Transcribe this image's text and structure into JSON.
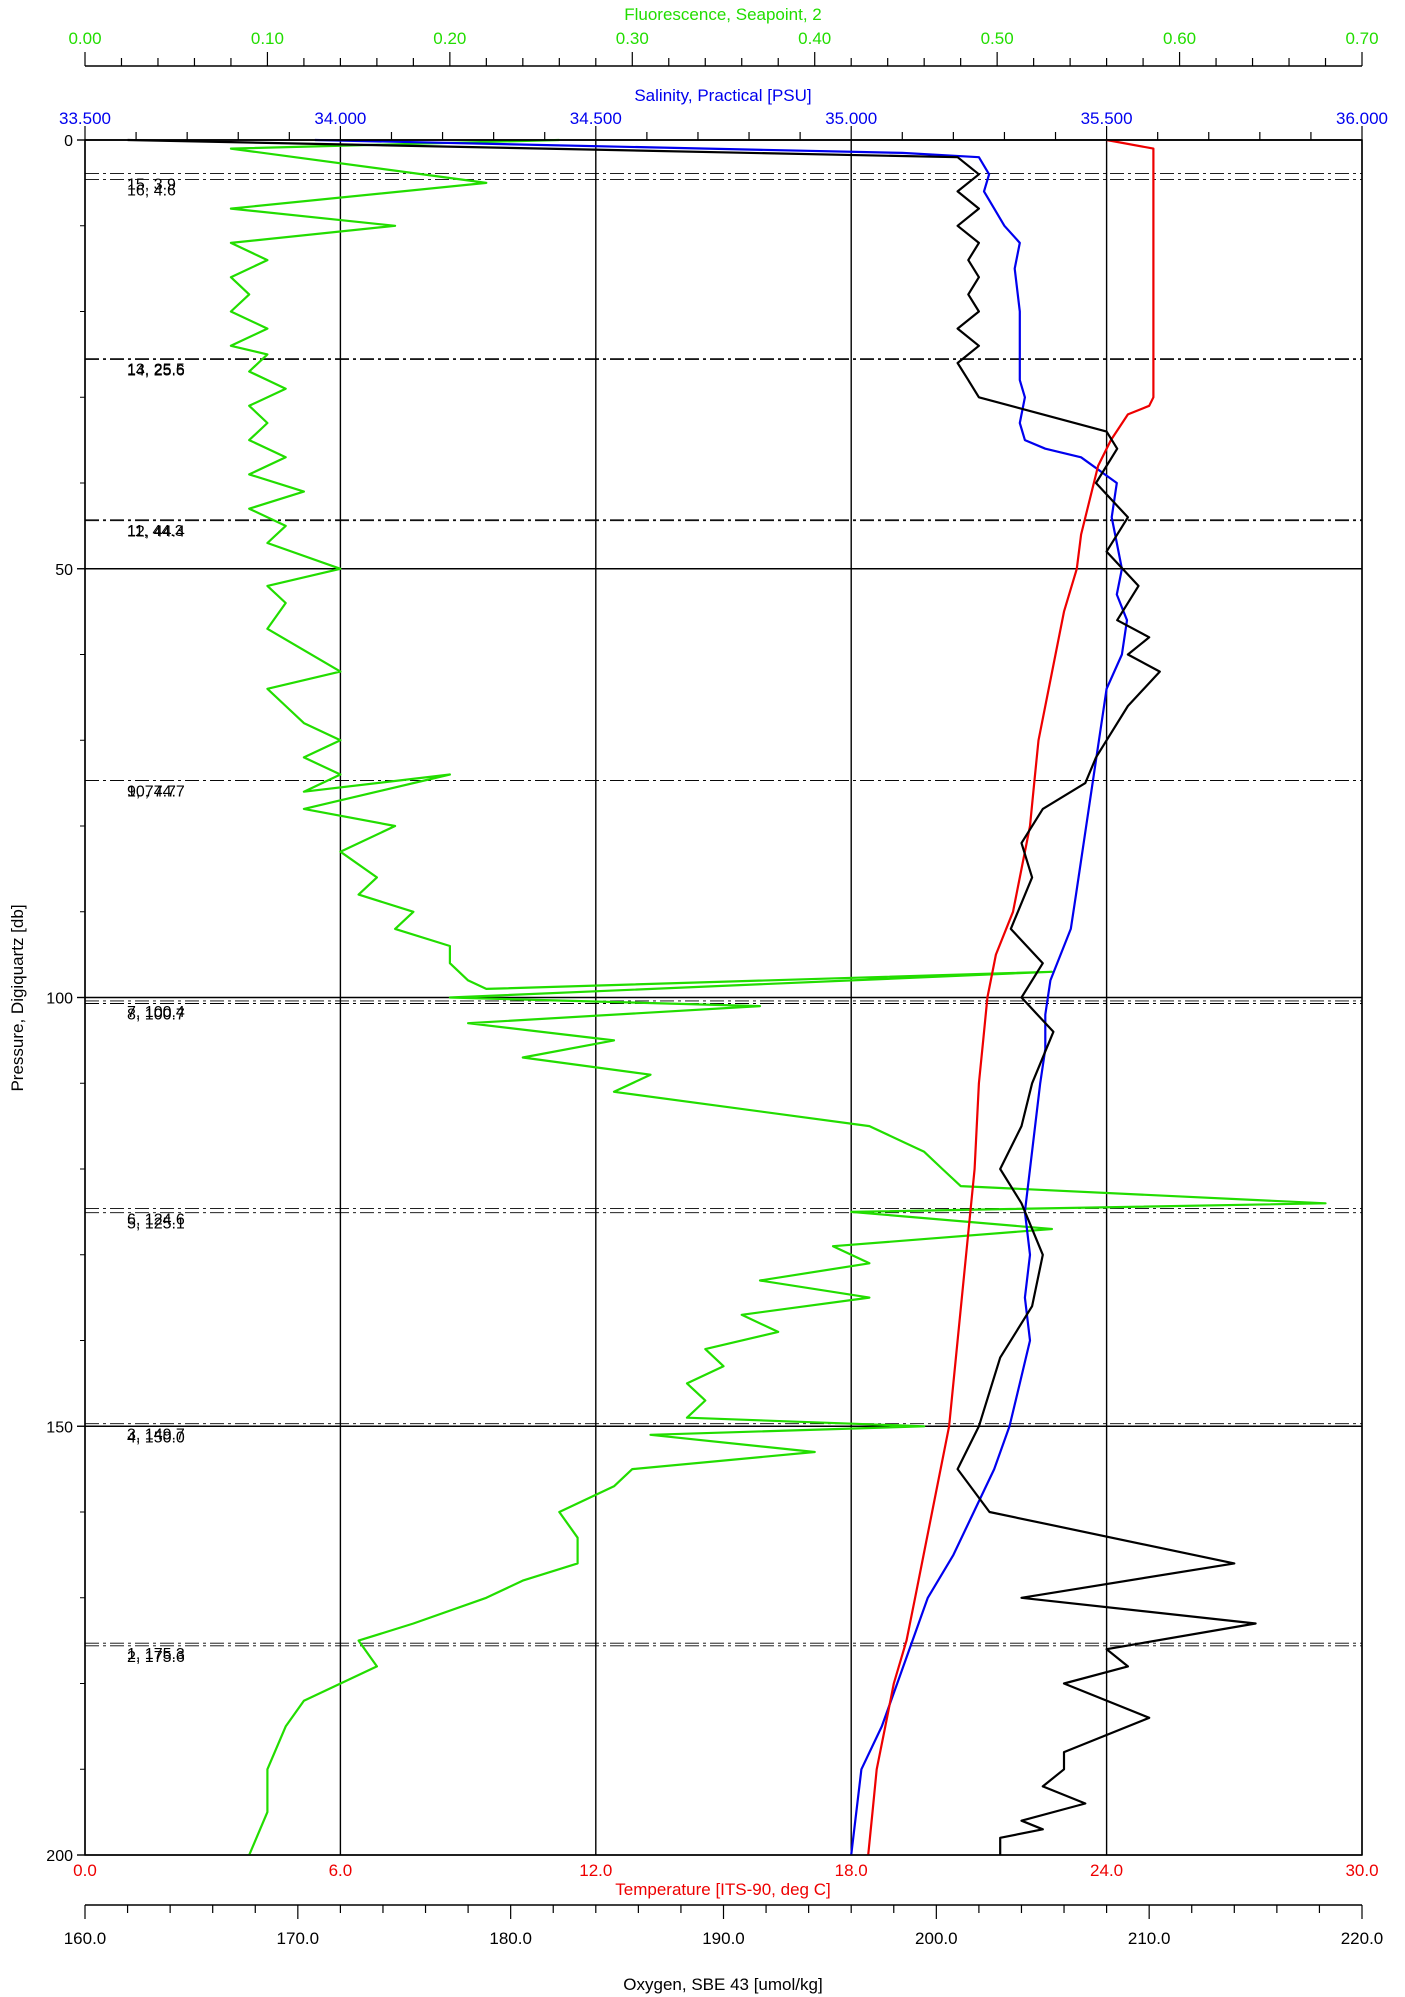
{
  "chart_data": {
    "type": "line",
    "y_axis": {
      "label": "Pressure, Digiquartz [db]",
      "range": [
        0,
        200
      ],
      "inverted": true,
      "ticks": [
        "0",
        "50",
        "100",
        "150",
        "200"
      ]
    },
    "x_axes": [
      {
        "id": "fluorescence",
        "label": "Fluorescence, Seapoint, 2",
        "range": [
          0,
          0.7
        ],
        "position": "top",
        "color": "#22dd00",
        "ticks": [
          "0.00",
          "0.10",
          "0.20",
          "0.30",
          "0.40",
          "0.50",
          "0.60",
          "0.70"
        ]
      },
      {
        "id": "salinity",
        "label": "Salinity, Practical [PSU]",
        "range": [
          33.5,
          36.0
        ],
        "position": "top",
        "color": "#0000ee",
        "ticks": [
          "33.500",
          "34.000",
          "34.500",
          "35.000",
          "35.500",
          "36.000"
        ]
      },
      {
        "id": "temperature",
        "label": "Temperature [ITS-90, deg C]",
        "range": [
          0,
          30
        ],
        "position": "bottom",
        "color": "#ee0000",
        "ticks": [
          "0.0",
          "6.0",
          "12.0",
          "18.0",
          "24.0",
          "30.0"
        ]
      },
      {
        "id": "oxygen",
        "label": "Oxygen, SBE 43 [umol/kg]",
        "range": [
          160,
          220
        ],
        "position": "bottom",
        "color": "#000000",
        "ticks": [
          "160.0",
          "170.0",
          "180.0",
          "190.0",
          "200.0",
          "210.0",
          "220.0"
        ]
      }
    ],
    "grid": true,
    "series": [
      {
        "axis": "fluorescence",
        "color": "#22dd00",
        "x": [
          0.26,
          0.08,
          0.22,
          0.08,
          0.17,
          0.08,
          0.1,
          0.08,
          0.09,
          0.08,
          0.1,
          0.08,
          0.1,
          0.09,
          0.11,
          0.09,
          0.1,
          0.09,
          0.11,
          0.09,
          0.12,
          0.09,
          0.11,
          0.1,
          0.14,
          0.1,
          0.11,
          0.1,
          0.14,
          0.1,
          0.11,
          0.12,
          0.14,
          0.12,
          0.14,
          0.12,
          0.2,
          0.12,
          0.17,
          0.14,
          0.16,
          0.15,
          0.18,
          0.17,
          0.2,
          0.2,
          0.21,
          0.22,
          0.53,
          0.2,
          0.37,
          0.21,
          0.29,
          0.24,
          0.31,
          0.29,
          0.43,
          0.46,
          0.47,
          0.48,
          0.68,
          0.42,
          0.53,
          0.41,
          0.43,
          0.37,
          0.43,
          0.36,
          0.38,
          0.34,
          0.35,
          0.33,
          0.34,
          0.33,
          0.46,
          0.31,
          0.4,
          0.3,
          0.29,
          0.26,
          0.27,
          0.27,
          0.24,
          0.22,
          0.18,
          0.15,
          0.16,
          0.12,
          0.11,
          0.1,
          0.1,
          0.09
        ],
        "y": [
          0,
          1,
          5,
          8,
          10,
          12,
          14,
          16,
          18,
          20,
          22,
          24,
          25,
          27,
          29,
          31,
          33,
          35,
          37,
          39,
          41,
          43,
          45,
          47,
          50,
          52,
          54,
          57,
          62,
          64,
          66,
          68,
          70,
          72,
          74,
          76,
          74,
          78,
          80,
          83,
          86,
          88,
          90,
          92,
          94,
          96,
          98,
          99,
          97,
          100,
          101,
          103,
          105,
          107,
          109,
          111,
          115,
          118,
          120,
          122,
          124,
          125,
          127,
          129,
          131,
          133,
          135,
          137,
          139,
          141,
          143,
          145,
          147,
          149,
          150,
          151,
          153,
          155,
          157,
          160,
          163,
          166,
          168,
          170,
          173,
          175,
          178,
          182,
          185,
          190,
          195,
          200
        ]
      },
      {
        "axis": "salinity",
        "color": "#0000ee",
        "x": [
          33.95,
          35.1,
          35.25,
          35.27,
          35.26,
          35.28,
          35.3,
          35.33,
          35.32,
          35.33,
          35.33,
          35.33,
          35.34,
          35.33,
          35.34,
          35.38,
          35.45,
          35.52,
          35.51,
          35.52,
          35.53,
          35.52,
          35.54,
          35.53,
          35.5,
          35.49,
          35.48,
          35.47,
          35.46,
          35.45,
          35.44,
          35.43,
          35.41,
          35.39,
          35.38,
          35.38,
          35.37,
          35.36,
          35.35,
          35.34,
          35.35,
          35.34,
          35.35,
          35.33,
          35.31,
          35.28,
          35.24,
          35.2,
          35.15,
          35.12,
          35.09,
          35.06,
          35.02,
          35.0
        ],
        "y": [
          0,
          1.5,
          2,
          4,
          6,
          8,
          10,
          12,
          15,
          20,
          25,
          28,
          30,
          33,
          35,
          36,
          37,
          40,
          44,
          47,
          50,
          53,
          56,
          60,
          64,
          68,
          72,
          76,
          80,
          84,
          88,
          92,
          95,
          98,
          102,
          106,
          110,
          115,
          120,
          125,
          130,
          135,
          140,
          145,
          150,
          155,
          160,
          165,
          170,
          175,
          180,
          185,
          190,
          200
        ]
      },
      {
        "axis": "temperature",
        "color": "#ee0000",
        "x": [
          24.0,
          25.1,
          25.1,
          25.1,
          25.1,
          25.1,
          25.0,
          24.5,
          24.1,
          23.8,
          23.6,
          23.4,
          23.3,
          23.0,
          22.8,
          22.6,
          22.4,
          22.3,
          22.2,
          22.0,
          21.8,
          21.4,
          21.2,
          21.1,
          21.0,
          20.9,
          20.7,
          20.5,
          20.3,
          20.1,
          19.9,
          19.7,
          19.5,
          19.3,
          19.0,
          18.8,
          18.6,
          18.5,
          18.4
        ],
        "y": [
          0,
          1,
          10,
          20,
          28,
          30,
          31,
          32,
          35,
          38,
          42,
          46,
          50,
          55,
          60,
          65,
          70,
          75,
          80,
          85,
          90,
          95,
          100,
          105,
          110,
          120,
          130,
          140,
          150,
          155,
          160,
          165,
          170,
          175,
          180,
          185,
          190,
          195,
          200
        ]
      },
      {
        "axis": "oxygen",
        "color": "#000000",
        "x": [
          162,
          201,
          202,
          201,
          202,
          201,
          202,
          201.5,
          202,
          201.5,
          202,
          201,
          202,
          201,
          201.5,
          202,
          205,
          208,
          208.5,
          207.5,
          209,
          208,
          209.5,
          208.5,
          210,
          209,
          210.5,
          209,
          208,
          207.5,
          207,
          205,
          204,
          204.5,
          203.5,
          205,
          204,
          205.5,
          204.5,
          204,
          203,
          204,
          205,
          204.5,
          203,
          202,
          201,
          202.5,
          214,
          204,
          215,
          208,
          209,
          206,
          210,
          206,
          206,
          205,
          207,
          204,
          205,
          203,
          203
        ],
        "y": [
          0,
          2,
          4,
          6,
          8,
          10,
          12,
          14,
          16,
          18,
          20,
          22,
          24,
          26,
          28,
          30,
          32,
          34,
          36,
          40,
          44,
          48,
          52,
          56,
          58,
          60,
          62,
          66,
          70,
          72,
          75,
          78,
          82,
          86,
          92,
          96,
          100,
          104,
          110,
          115,
          120,
          124,
          130,
          136,
          142,
          150,
          155,
          160,
          166,
          170,
          173,
          176,
          178,
          180,
          184,
          188,
          190,
          192,
          194,
          196,
          197,
          198,
          200
        ]
      }
    ],
    "bottle_labels": [
      {
        "text": "16, 4.6",
        "y": 4.6
      },
      {
        "text": "15, 3.9",
        "y": 3.9
      },
      {
        "text": "14, 25.6",
        "y": 25.6
      },
      {
        "text": "13, 25.5",
        "y": 25.5
      },
      {
        "text": "12, 44.4",
        "y": 44.4
      },
      {
        "text": "11, 44.3",
        "y": 44.3
      },
      {
        "text": "10, 74.7",
        "y": 74.7
      },
      {
        "text": "9, 74.7",
        "y": 74.7
      },
      {
        "text": "8, 100.7",
        "y": 100.7
      },
      {
        "text": "7, 100.4",
        "y": 100.4
      },
      {
        "text": "6, 124.6",
        "y": 124.6
      },
      {
        "text": "5, 125.1",
        "y": 125.1
      },
      {
        "text": "4, 150.0",
        "y": 150.0
      },
      {
        "text": "3, 149.7",
        "y": 149.7
      },
      {
        "text": "2, 175.6",
        "y": 175.6
      },
      {
        "text": "1, 175.3",
        "y": 175.3
      }
    ]
  }
}
